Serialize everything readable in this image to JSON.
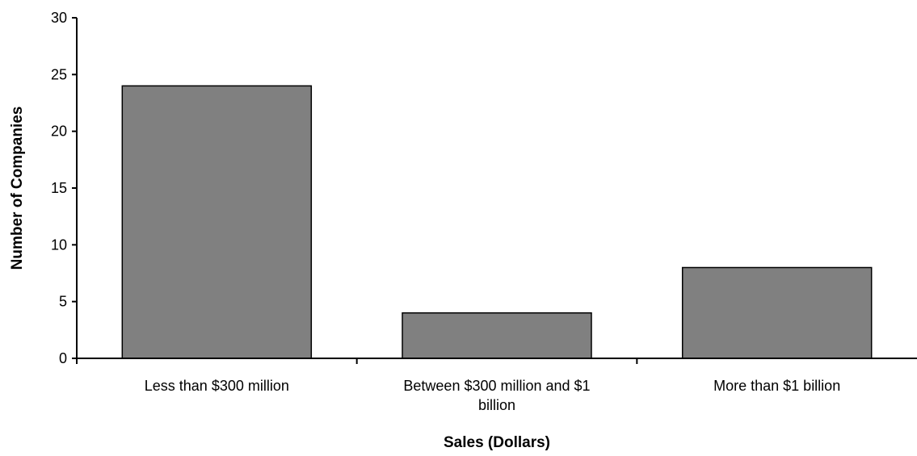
{
  "chart_data": {
    "type": "bar",
    "title": "",
    "xlabel": "Sales (Dollars)",
    "ylabel": "Number of Companies",
    "categories": [
      [
        "Less than $300 million"
      ],
      [
        "Between $300 million and $1",
        "billion"
      ],
      [
        "More than $1 billion"
      ]
    ],
    "values": [
      24,
      4,
      8
    ],
    "ylim": [
      0,
      30
    ],
    "yticks": [
      0,
      5,
      10,
      15,
      20,
      25,
      30
    ],
    "grid": false,
    "legend": "none",
    "colors": {
      "bar_fill": "#808080",
      "bar_stroke": "#000000",
      "axis": "#000000"
    }
  }
}
